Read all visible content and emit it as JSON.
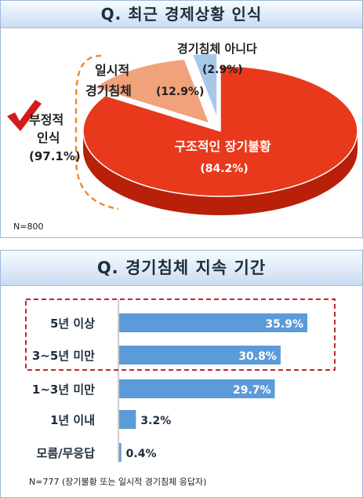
{
  "pie_chart": {
    "title": "Q. 최근 경제상황 인식",
    "n_label": "N=800",
    "negative_group": {
      "line1": "부정적",
      "line2": "인식",
      "value": "(97.1%)"
    },
    "colors": {
      "main": "#e8391c",
      "main_side": "#b8200a",
      "second": "#f0a27a",
      "second_side": "#c9774f",
      "third": "#a8c8ea",
      "third_side": "#7aa0c8",
      "check": "#d41a1a",
      "bracket": "#f08a2c"
    }
  },
  "bar_chart": {
    "title": "Q. 경기침체 지속 기간",
    "n_label": "N=777 (장기불황 또는 일시적 경기침체 응답자)",
    "colors": {
      "bar": "#5b9bd8",
      "highlight_box": "#c0282c"
    }
  },
  "chart_data": [
    {
      "type": "pie",
      "title": "Q. 최근 경제상황 인식",
      "categories": [
        "구조적인 장기불황",
        "일시적 경기침체",
        "경기침체 아니다"
      ],
      "values": [
        84.2,
        12.9,
        2.9
      ],
      "value_labels": [
        "(84.2%)",
        "(12.9%)",
        "(2.9%)"
      ],
      "label_lines": [
        [
          "구조적인 장기불황"
        ],
        [
          "일시적",
          "경기침체"
        ],
        [
          "경기침체 아니다"
        ]
      ],
      "annotation": "부정적 인식 (97.1%)",
      "n": "N=800"
    },
    {
      "type": "bar",
      "orientation": "horizontal",
      "title": "Q. 경기침체 지속 기간",
      "categories": [
        "5년 이상",
        "3~5년 미만",
        "1~3년 미만",
        "1년 이내",
        "모름/무응답"
      ],
      "values": [
        35.9,
        30.8,
        29.7,
        3.2,
        0.4
      ],
      "value_labels": [
        "35.9%",
        "30.8%",
        "29.7%",
        "3.2%",
        "0.4%"
      ],
      "highlighted": [
        "5년 이상",
        "3~5년 미만"
      ],
      "n": "N=777 (장기불황 또는 일시적 경기침체 응답자)"
    }
  ]
}
